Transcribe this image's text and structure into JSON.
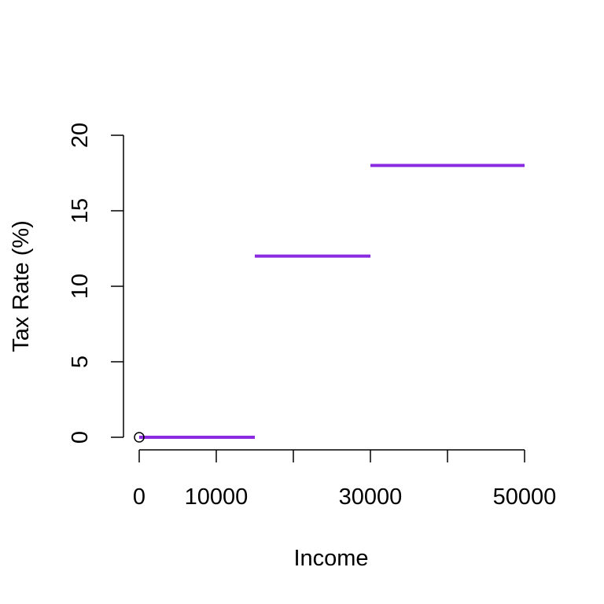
{
  "chart_data": {
    "type": "line",
    "title": "",
    "xlabel": "Income",
    "ylabel": "Tax Rate (%)",
    "xlim": [
      0,
      50000
    ],
    "ylim": [
      0,
      20
    ],
    "x_ticks": [
      0,
      10000,
      20000,
      30000,
      40000,
      50000
    ],
    "x_tick_labels": [
      "0",
      "10000",
      "",
      "30000",
      "",
      "50000"
    ],
    "y_ticks": [
      0,
      5,
      10,
      15,
      20
    ],
    "y_tick_labels": [
      "0",
      "5",
      "10",
      "15",
      "20"
    ],
    "grid": false,
    "series": [
      {
        "style": "step",
        "color": "#8A2BE2",
        "segments": [
          {
            "x": [
              0,
              15000
            ],
            "y": [
              0,
              0
            ]
          },
          {
            "x": [
              15000,
              30000
            ],
            "y": [
              12,
              12
            ]
          },
          {
            "x": [
              30000,
              50000
            ],
            "y": [
              18,
              18
            ]
          }
        ]
      }
    ],
    "points": [
      {
        "x": 0,
        "y": 0,
        "marker": "open-circle",
        "color": "#000000"
      }
    ]
  }
}
